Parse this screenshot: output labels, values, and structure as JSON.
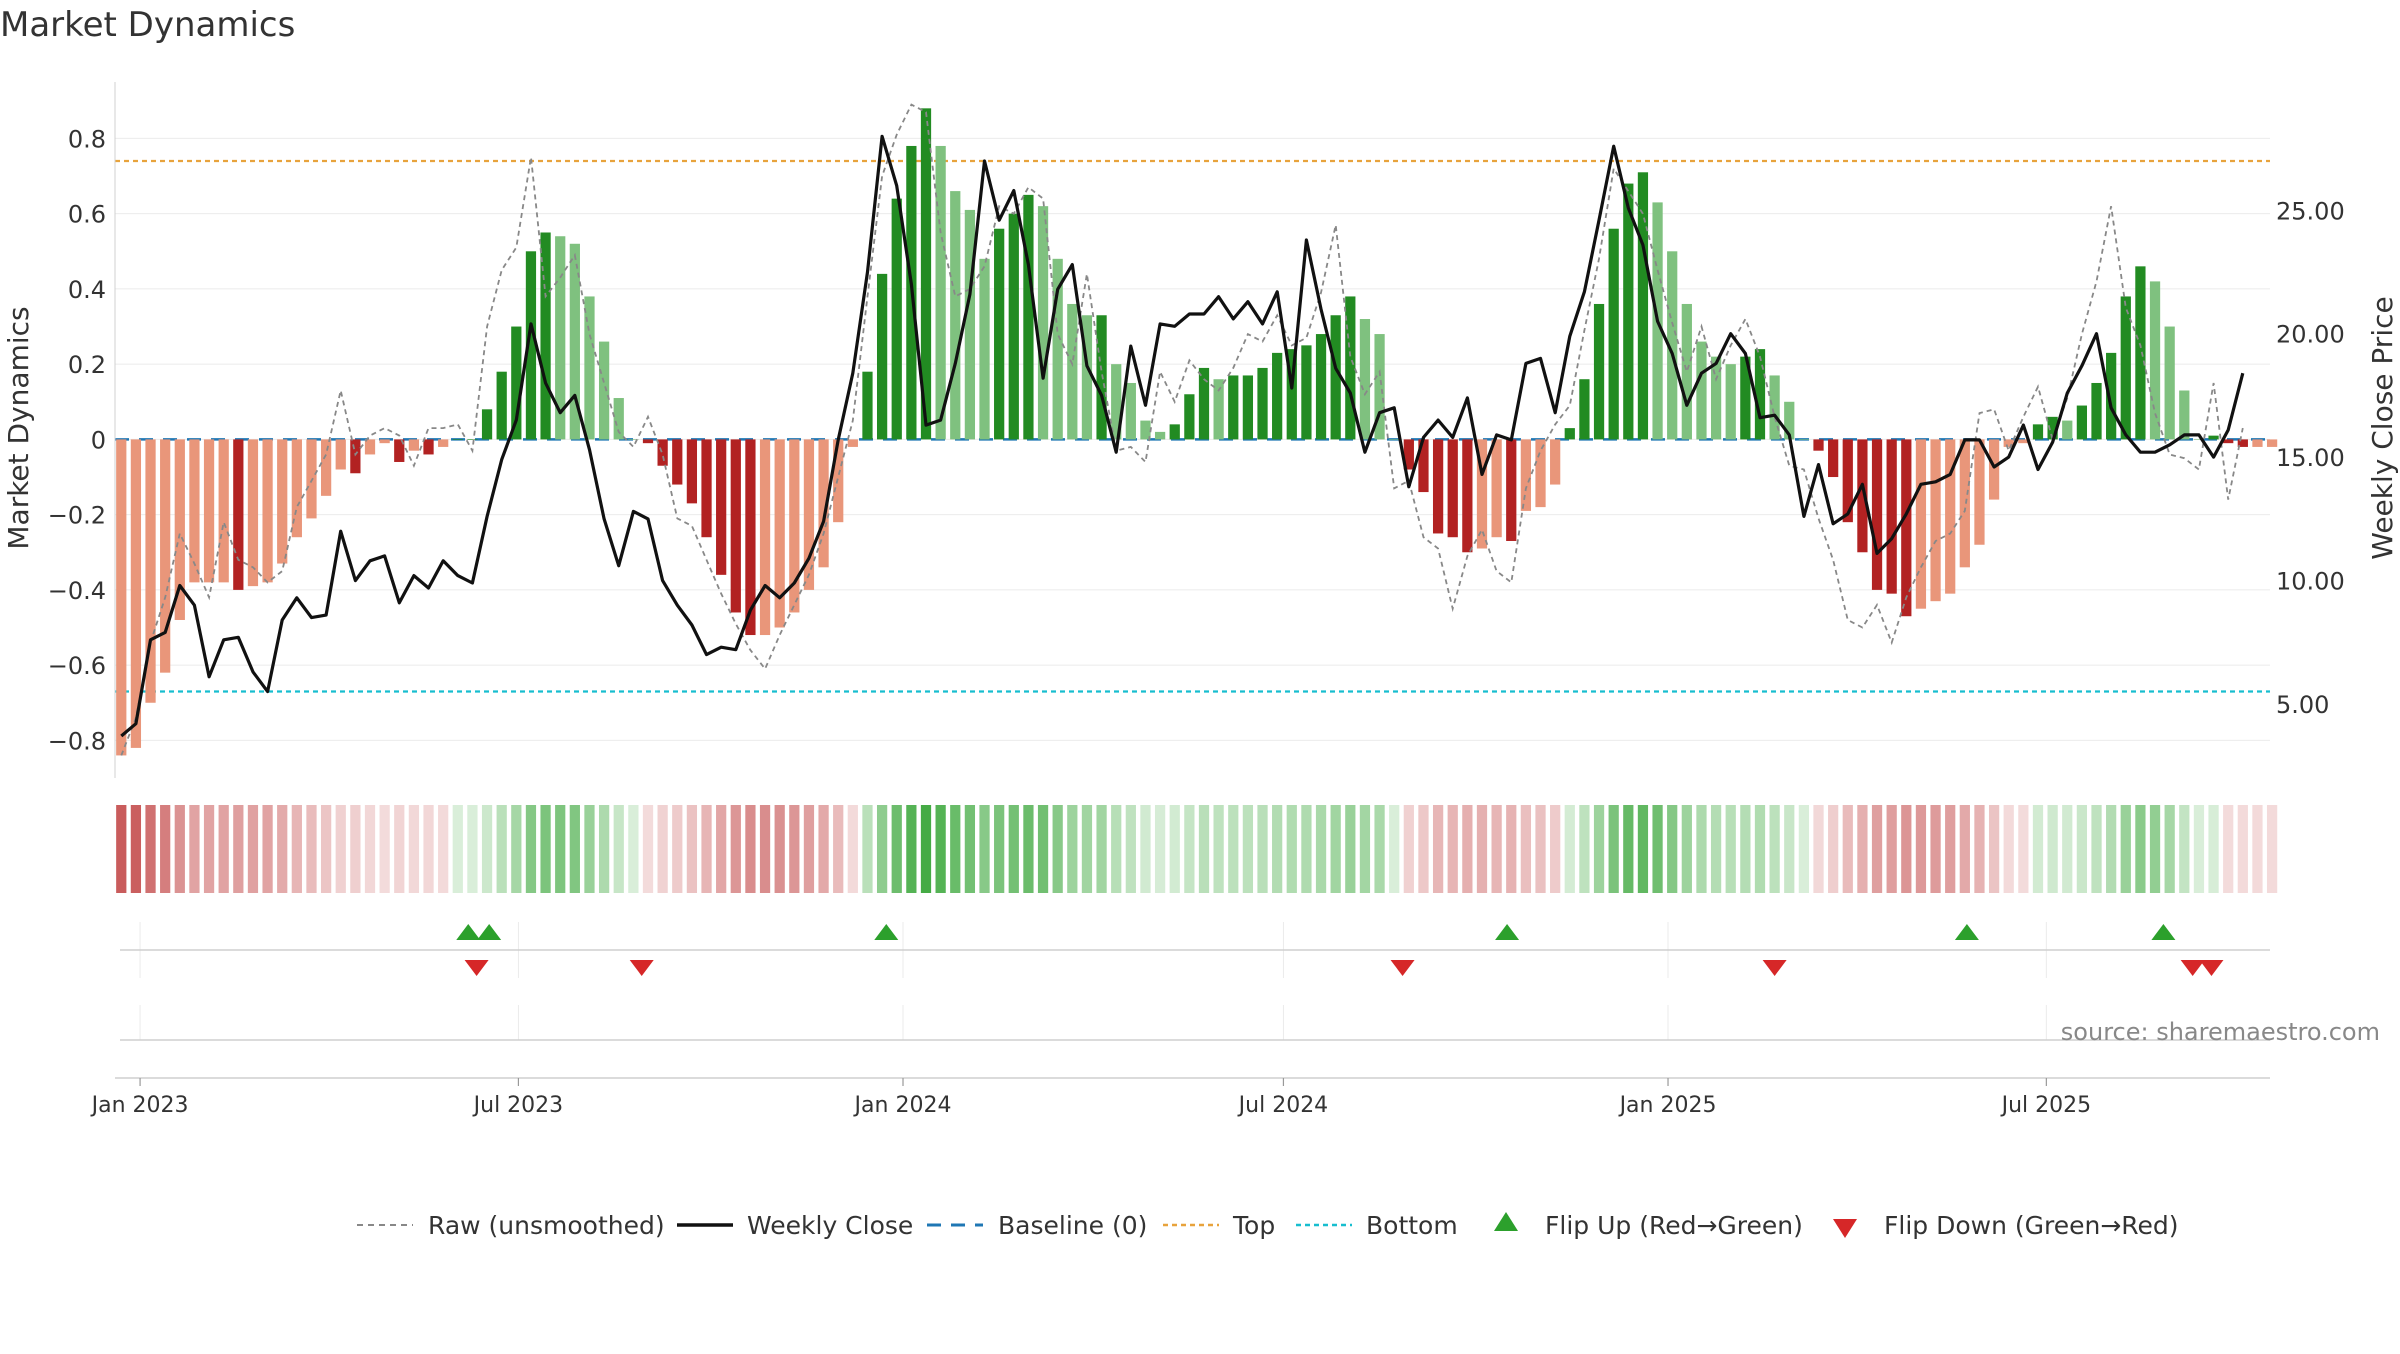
{
  "title": "Market Dynamics",
  "source": "source: sharemaestro.com",
  "colors": {
    "green_strong": "#228B22",
    "green_light": "#7FC17F",
    "red_strong": "#B22222",
    "red_light": "#E9967A",
    "raw": "#888888",
    "close": "#111111",
    "baseline": "#1F77B4",
    "top": "#E8A33C",
    "bottom": "#17BECF",
    "flip_up": "#2CA02C",
    "flip_down": "#D62728",
    "grid": "#EBEBEB"
  },
  "chart_data": {
    "type": "bar",
    "title": "Market Dynamics",
    "ylabel": "Market Dynamics",
    "y2label": "Weekly Close Price",
    "ylim": [
      -0.9,
      0.95
    ],
    "y2lim": [
      2.0,
      30.2
    ],
    "yticks": [
      -0.8,
      -0.6,
      -0.4,
      -0.2,
      0,
      0.2,
      0.4,
      0.6,
      0.8
    ],
    "ytick_labels": [
      "−0.8",
      "−0.6",
      "−0.4",
      "−0.2",
      "0",
      "0.2",
      "0.4",
      "0.6",
      "0.8"
    ],
    "y2ticks": [
      5,
      10,
      15,
      20,
      25
    ],
    "y2tick_labels": [
      "5.00",
      "10.00",
      "15.00",
      "20.00",
      "25.00"
    ],
    "xlim": [
      "2022-12-20",
      "2025-10-16"
    ],
    "xticks": [
      "2023-01-01",
      "2023-07-01",
      "2024-01-01",
      "2024-07-01",
      "2025-01-01",
      "2025-07-01"
    ],
    "xtick_labels": [
      "Jan 2023",
      "Jul 2023",
      "Jan 2024",
      "Jul 2024",
      "Jan 2025",
      "Jul 2025"
    ],
    "start_date": "2022-12-23",
    "top_level": 0.74,
    "bottom_level": -0.67,
    "baseline_level": 0,
    "grid": true,
    "legend_position": "bottom",
    "legend": [
      "Raw (unsmoothed)",
      "Weekly Close",
      "Baseline (0)",
      "Top",
      "Bottom",
      "Flip Up (Red→Green)",
      "Flip Down (Green→Red)"
    ],
    "smoothed": [
      -0.84,
      -0.82,
      -0.7,
      -0.62,
      -0.48,
      -0.38,
      -0.38,
      -0.38,
      -0.4,
      -0.39,
      -0.38,
      -0.33,
      -0.26,
      -0.21,
      -0.15,
      -0.08,
      -0.09,
      -0.04,
      -0.01,
      -0.06,
      -0.03,
      -0.04,
      -0.02,
      0.0,
      0.0,
      0.08,
      0.18,
      0.3,
      0.5,
      0.55,
      0.54,
      0.52,
      0.38,
      0.26,
      0.11,
      0.0,
      -0.01,
      -0.07,
      -0.12,
      -0.17,
      -0.26,
      -0.36,
      -0.46,
      -0.52,
      -0.52,
      -0.5,
      -0.46,
      -0.4,
      -0.34,
      -0.22,
      -0.02,
      0.18,
      0.44,
      0.64,
      0.78,
      0.88,
      0.78,
      0.66,
      0.61,
      0.48,
      0.56,
      0.6,
      0.65,
      0.62,
      0.48,
      0.36,
      0.33,
      0.33,
      0.2,
      0.15,
      0.05,
      0.02,
      0.04,
      0.12,
      0.19,
      0.16,
      0.17,
      0.17,
      0.19,
      0.23,
      0.24,
      0.25,
      0.28,
      0.33,
      0.38,
      0.32,
      0.28,
      0.0,
      -0.08,
      -0.14,
      -0.25,
      -0.26,
      -0.3,
      -0.29,
      -0.26,
      -0.27,
      -0.19,
      -0.18,
      -0.12,
      0.03,
      0.16,
      0.36,
      0.56,
      0.68,
      0.71,
      0.63,
      0.5,
      0.36,
      0.26,
      0.22,
      0.2,
      0.22,
      0.24,
      0.17,
      0.1,
      0.0,
      -0.03,
      -0.1,
      -0.22,
      -0.3,
      -0.4,
      -0.41,
      -0.47,
      -0.45,
      -0.43,
      -0.41,
      -0.34,
      -0.28,
      -0.16,
      -0.02,
      -0.01,
      0.04,
      0.06,
      0.05,
      0.09,
      0.15,
      0.23,
      0.38,
      0.46,
      0.42,
      0.3,
      0.13,
      0.0,
      0.01,
      -0.01,
      -0.02,
      -0.02,
      -0.02
    ],
    "raw": [
      -0.84,
      -0.74,
      -0.54,
      -0.42,
      -0.25,
      -0.33,
      -0.42,
      -0.22,
      -0.32,
      -0.34,
      -0.38,
      -0.35,
      -0.18,
      -0.11,
      -0.04,
      0.13,
      -0.04,
      0.01,
      0.03,
      0.01,
      -0.07,
      0.03,
      0.03,
      0.04,
      -0.03,
      0.3,
      0.45,
      0.51,
      0.75,
      0.38,
      0.43,
      0.49,
      0.28,
      0.15,
      0.02,
      -0.02,
      0.06,
      -0.04,
      -0.21,
      -0.23,
      -0.32,
      -0.41,
      -0.49,
      -0.56,
      -0.61,
      -0.52,
      -0.44,
      -0.36,
      -0.25,
      -0.1,
      0.05,
      0.38,
      0.7,
      0.81,
      0.89,
      0.87,
      0.55,
      0.38,
      0.4,
      0.46,
      0.62,
      0.6,
      0.67,
      0.64,
      0.28,
      0.2,
      0.44,
      0.18,
      -0.03,
      -0.02,
      -0.06,
      0.18,
      0.1,
      0.21,
      0.16,
      0.13,
      0.19,
      0.28,
      0.26,
      0.33,
      0.25,
      0.27,
      0.39,
      0.57,
      0.22,
      0.12,
      0.18,
      -0.13,
      -0.11,
      -0.26,
      -0.29,
      -0.45,
      -0.31,
      -0.24,
      -0.35,
      -0.38,
      -0.13,
      -0.03,
      0.04,
      0.09,
      0.29,
      0.48,
      0.72,
      0.66,
      0.6,
      0.45,
      0.31,
      0.18,
      0.3,
      0.16,
      0.25,
      0.32,
      0.22,
      0.06,
      -0.07,
      -0.08,
      -0.21,
      -0.32,
      -0.48,
      -0.5,
      -0.44,
      -0.54,
      -0.42,
      -0.34,
      -0.27,
      -0.25,
      -0.19,
      0.07,
      0.08,
      -0.03,
      0.06,
      0.14,
      0.0,
      0.11,
      0.28,
      0.42,
      0.62,
      0.35,
      0.25,
      0.07,
      -0.04,
      -0.05,
      -0.08,
      0.15,
      -0.16,
      0.03
    ],
    "close": [
      3.7,
      4.2,
      7.6,
      7.9,
      9.8,
      9.0,
      6.1,
      7.6,
      7.7,
      6.3,
      5.5,
      8.4,
      9.3,
      8.5,
      8.6,
      12.0,
      10.0,
      10.8,
      11.0,
      9.1,
      10.2,
      9.7,
      10.8,
      10.2,
      9.9,
      12.6,
      14.9,
      16.5,
      20.4,
      18.0,
      16.8,
      17.5,
      15.3,
      12.5,
      10.6,
      12.8,
      12.5,
      10.0,
      9.0,
      8.2,
      7.0,
      7.3,
      7.2,
      8.8,
      9.8,
      9.3,
      9.9,
      10.9,
      12.4,
      15.7,
      18.4,
      22.5,
      28.0,
      26.0,
      22.0,
      16.3,
      16.5,
      18.8,
      21.6,
      27.0,
      24.6,
      25.8,
      22.8,
      18.2,
      21.8,
      22.8,
      18.7,
      17.5,
      15.2,
      19.5,
      17.1,
      20.4,
      20.3,
      20.8,
      20.8,
      21.5,
      20.6,
      21.3,
      20.4,
      21.7,
      17.8,
      23.8,
      21.0,
      18.6,
      17.6,
      15.2,
      16.8,
      17.0,
      13.8,
      15.8,
      16.5,
      15.8,
      17.4,
      14.3,
      15.9,
      15.7,
      18.8,
      19.0,
      16.8,
      19.9,
      21.7,
      24.6,
      27.6,
      25.1,
      23.6,
      20.5,
      19.2,
      17.1,
      18.4,
      18.8,
      20.0,
      19.2,
      16.6,
      16.7,
      15.9,
      12.6,
      14.7,
      12.3,
      12.7,
      13.9,
      11.1,
      11.7,
      12.7,
      13.9,
      14.0,
      14.3,
      15.7,
      15.7,
      14.6,
      15.0,
      16.3,
      14.5,
      15.6,
      17.6,
      18.7,
      20.0,
      17.0,
      15.9,
      15.2,
      15.2,
      15.5,
      15.9,
      15.9,
      15.0,
      16.1,
      18.4
    ],
    "flip_up_dates": [
      "2023-06-07",
      "2023-06-17",
      "2023-12-24",
      "2024-10-16",
      "2025-05-24",
      "2025-08-26"
    ],
    "flip_down_dates": [
      "2023-06-11",
      "2023-08-29",
      "2024-08-27",
      "2025-02-21",
      "2025-09-09",
      "2025-09-18"
    ]
  }
}
